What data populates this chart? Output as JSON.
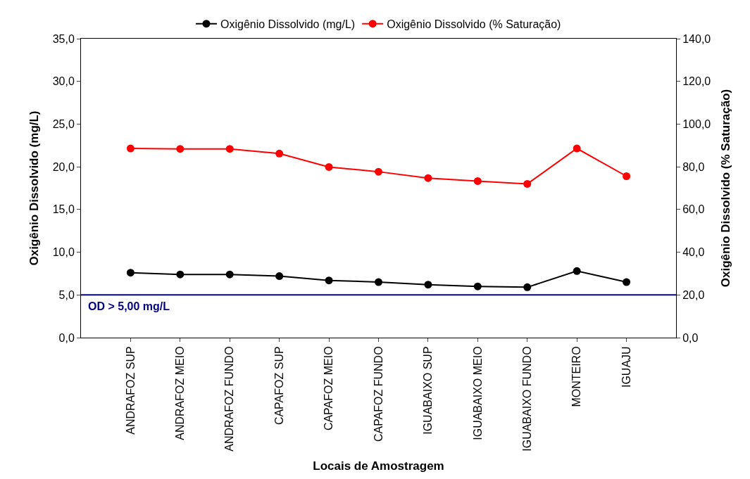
{
  "chart_data": {
    "type": "line",
    "xlabel": "Locais de Amostragem",
    "ylabel": "Oxigênio Dissolvido (mg/L)",
    "y2label": "Oxigênio Dissolvido (% Saturação)",
    "categories": [
      "ANDRAFOZ SUP",
      "ANDRAFOZ MEIO",
      "ANDRAFOZ FUNDO",
      "CAPAFOZ SUP",
      "CAPAFOZ MEIO",
      "CAPAFOZ FUNDO",
      "IGUABAIXO SUP",
      "IGUABAIXO MEIO",
      "IGUABAIXO FUNDO",
      "MONTEIRO",
      "IGUAJU"
    ],
    "series": [
      {
        "name": "Oxigênio Dissolvido (mg/L)",
        "color": "#000000",
        "values": [
          7.6,
          7.4,
          7.4,
          7.2,
          6.7,
          6.5,
          6.2,
          6.0,
          5.9,
          7.8,
          6.5
        ]
      },
      {
        "name": "Oxigênio Dissolvido (% Saturação)",
        "color": "#ff0000",
        "axis": "y2",
        "values": [
          88.6,
          88.4,
          88.4,
          86.2,
          79.9,
          77.7,
          74.7,
          73.3,
          72.0,
          88.6,
          75.6
        ]
      }
    ],
    "ylim": [
      0,
      35
    ],
    "yticks": [
      {
        "value": 0,
        "label": "0,0"
      },
      {
        "value": 5,
        "label": "5,0"
      },
      {
        "value": 10,
        "label": "10,0"
      },
      {
        "value": 15,
        "label": "15,0"
      },
      {
        "value": 20,
        "label": "20,0"
      },
      {
        "value": 25,
        "label": "25,0"
      },
      {
        "value": 30,
        "label": "30,0"
      },
      {
        "value": 35,
        "label": "35,0"
      }
    ],
    "y2lim": [
      0,
      140
    ],
    "y2ticks": [
      {
        "value": 0,
        "label": "0,0"
      },
      {
        "value": 20,
        "label": "20,0"
      },
      {
        "value": 40,
        "label": "40,0"
      },
      {
        "value": 60,
        "label": "60,0"
      },
      {
        "value": 80,
        "label": "80,0"
      },
      {
        "value": 100,
        "label": "100,0"
      },
      {
        "value": 120,
        "label": "120,0"
      },
      {
        "value": 140,
        "label": "140,0"
      }
    ],
    "ref_lines": [
      {
        "axis": "y",
        "value": 5.0,
        "label": "OD > 5,00 mg/L",
        "color": "#000080",
        "line_style": "solid"
      }
    ],
    "legend": "top",
    "marker": "circle",
    "line_style": "solid"
  }
}
